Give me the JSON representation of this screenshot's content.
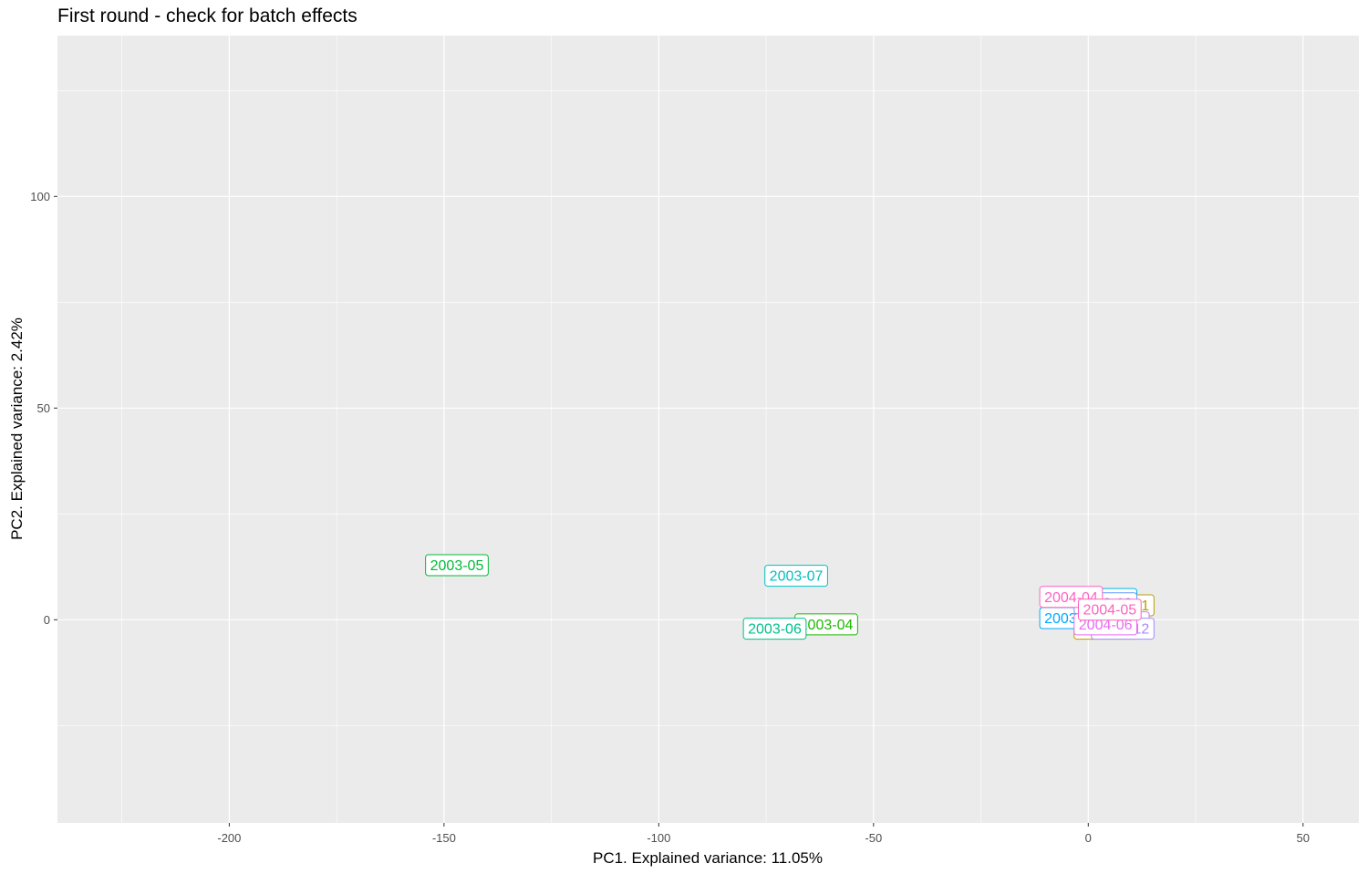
{
  "chart_data": {
    "type": "scatter",
    "title": "First round - check for batch effects",
    "xlabel": "PC1. Explained variance: 11.05%",
    "ylabel": "PC2. Explained variance: 2.42%",
    "xlim": [
      -240,
      63
    ],
    "ylim": [
      -48,
      138
    ],
    "x_ticks": [
      -200,
      -150,
      -100,
      -50,
      0,
      50
    ],
    "y_ticks": [
      0,
      50,
      100
    ],
    "grid": true,
    "legend": "none",
    "panel_background": "#ebebeb",
    "grid_color": "#ffffff",
    "points": [
      {
        "label": "2003-05",
        "x": -147,
        "y": 13,
        "color": "#00BA38"
      },
      {
        "label": "2003-07",
        "x": -68,
        "y": 10.5,
        "color": "#00BFC4"
      },
      {
        "label": "2003-04",
        "x": -61,
        "y": -1,
        "color": "#1CB800"
      },
      {
        "label": "2003-06",
        "x": -73,
        "y": -2,
        "color": "#00C08B"
      },
      {
        "label": "2004-01",
        "x": 8,
        "y": 3.5,
        "color": "#B79F00"
      },
      {
        "label": "2004-02",
        "x": 4,
        "y": 0,
        "color": "#7CAE00"
      },
      {
        "label": "2004-03",
        "x": 4,
        "y": -2,
        "color": "#C49A00"
      },
      {
        "label": "2003-08",
        "x": 4,
        "y": 5,
        "color": "#00B4F0"
      },
      {
        "label": "2003-09",
        "x": -4,
        "y": 0.5,
        "color": "#00A9FF"
      },
      {
        "label": "2003-10",
        "x": 4,
        "y": 4,
        "color": "#619CFF"
      },
      {
        "label": "2003-11",
        "x": 7,
        "y": -0.5,
        "color": "#C77CFF"
      },
      {
        "label": "2003-12",
        "x": 8,
        "y": -2,
        "color": "#A58AFF"
      },
      {
        "label": "2004-06",
        "x": 4,
        "y": -1,
        "color": "#E76BF3"
      },
      {
        "label": "2004-04",
        "x": -4,
        "y": 5.5,
        "color": "#FF61C3"
      },
      {
        "label": "2004-05",
        "x": 5,
        "y": 2.5,
        "color": "#FF62BC"
      }
    ]
  }
}
